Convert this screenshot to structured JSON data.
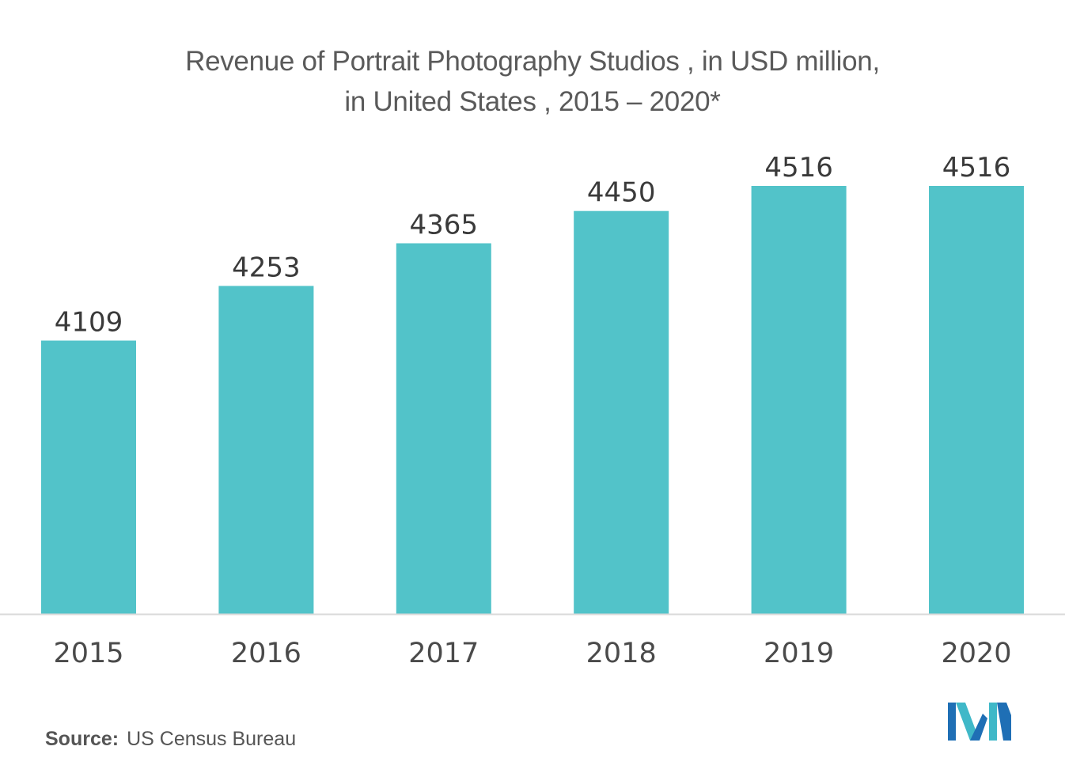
{
  "chart_data": {
    "type": "bar",
    "title_lines": [
      "Revenue of Portrait Photography Studios , in USD million,",
      "in United States , 2015 – 2020*"
    ],
    "categories": [
      "2015",
      "2016",
      "2017",
      "2018",
      "2019",
      "2020"
    ],
    "values": [
      4109,
      4253,
      4365,
      4450,
      4516,
      4516
    ],
    "bar_color": "#52c3c9",
    "axis_color": "#d9d9d9",
    "data_labels": true,
    "grid": false,
    "legend": "none"
  },
  "source": {
    "key": "Source:",
    "value": "US Census Bureau"
  },
  "logo": {
    "icon": "mordor-intelligence-logo-icon",
    "colors": [
      "#1f6fb5",
      "#3fb8c8"
    ]
  }
}
